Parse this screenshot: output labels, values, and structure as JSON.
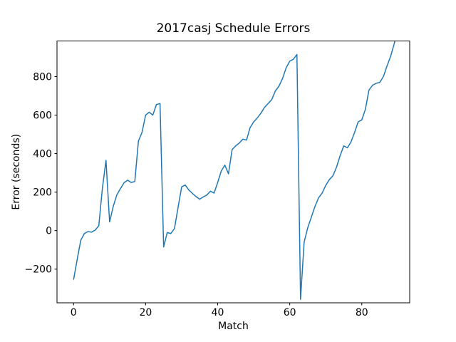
{
  "chart_data": {
    "type": "line",
    "title": "2017casj Schedule Errors",
    "xlabel": "Match",
    "ylabel": "Error (seconds)",
    "grid": false,
    "legend": "none",
    "line_color": "#1f77b4",
    "axis_color": "#000000",
    "background_color": "#ffffff",
    "xlim": [
      -4.6,
      93.3
    ],
    "ylim": [
      -375,
      985
    ],
    "xticks": {
      "values": [
        0,
        20,
        40,
        60,
        80
      ],
      "labels": [
        "0",
        "20",
        "40",
        "60",
        "80"
      ]
    },
    "yticks": {
      "values": [
        -200,
        0,
        200,
        400,
        600,
        800
      ],
      "labels": [
        "−200",
        "0",
        "200",
        "400",
        "600",
        "800"
      ]
    },
    "x": [
      0,
      1,
      2,
      3,
      4,
      5,
      6,
      7,
      8,
      9,
      10,
      11,
      12,
      13,
      14,
      15,
      16,
      17,
      18,
      19,
      20,
      21,
      22,
      23,
      24,
      25,
      26,
      27,
      28,
      29,
      30,
      31,
      32,
      33,
      34,
      35,
      36,
      37,
      38,
      39,
      40,
      41,
      42,
      43,
      44,
      45,
      46,
      47,
      48,
      49,
      50,
      51,
      52,
      53,
      54,
      55,
      56,
      57,
      58,
      59,
      60,
      61,
      62,
      63,
      64,
      65,
      66,
      67,
      68,
      69,
      70,
      71,
      72,
      73,
      74,
      75,
      76,
      77,
      78,
      79,
      80,
      81,
      82,
      83,
      84,
      85,
      86,
      87,
      88,
      89,
      90
    ],
    "values": [
      -255,
      -150,
      -50,
      -15,
      -5,
      -8,
      3,
      25,
      220,
      365,
      45,
      125,
      185,
      218,
      248,
      262,
      250,
      255,
      465,
      510,
      600,
      615,
      600,
      655,
      660,
      -85,
      -10,
      -15,
      10,
      120,
      227,
      237,
      211,
      193,
      177,
      163,
      175,
      185,
      205,
      195,
      250,
      310,
      340,
      295,
      420,
      440,
      455,
      475,
      470,
      535,
      565,
      585,
      610,
      640,
      660,
      680,
      725,
      750,
      790,
      845,
      880,
      890,
      915,
      -357,
      -60,
      15,
      70,
      125,
      170,
      195,
      235,
      265,
      285,
      330,
      390,
      440,
      430,
      460,
      510,
      565,
      575,
      630,
      730,
      755,
      765,
      770,
      800,
      855,
      905,
      970,
      1060
    ]
  }
}
